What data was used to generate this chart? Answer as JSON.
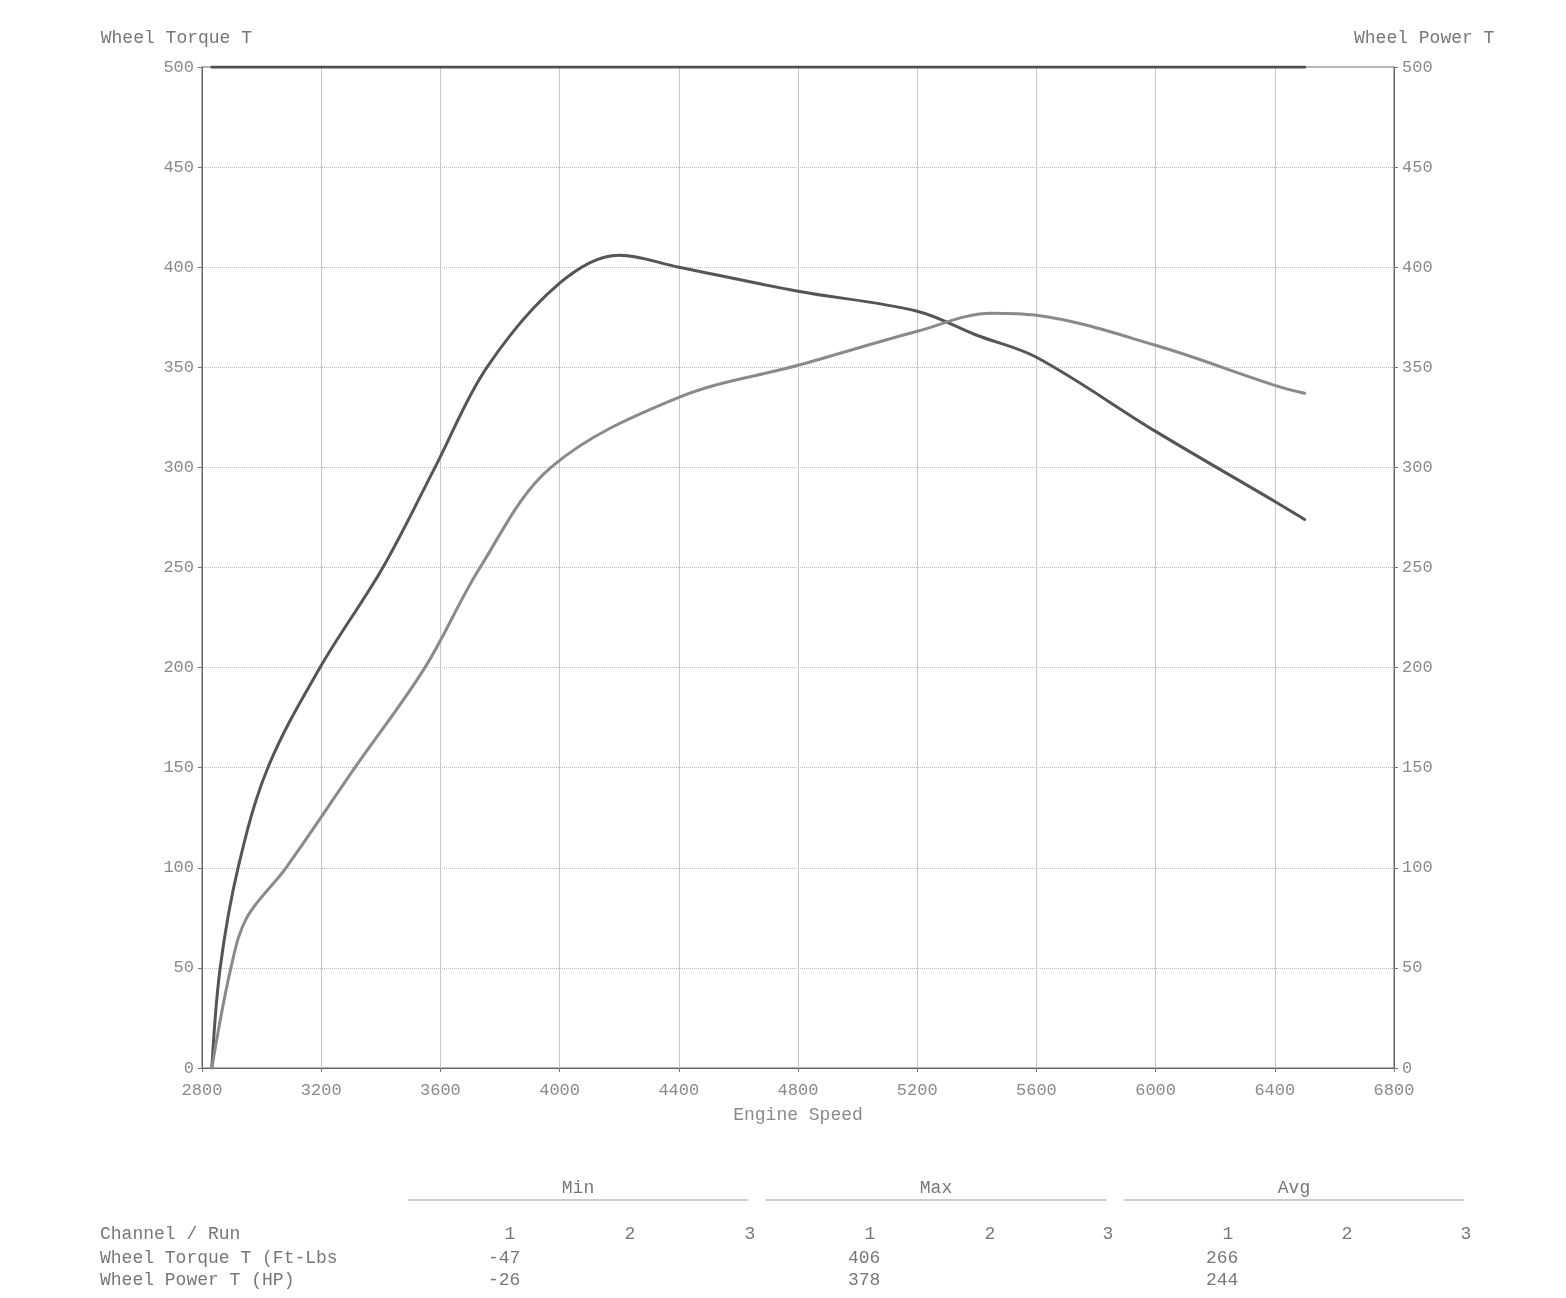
{
  "chart_data": {
    "type": "line",
    "xlabel": "Engine Speed",
    "ylabel": "Wheel Torque T",
    "y2label": "Wheel Power T",
    "xlim": [
      2800,
      6800
    ],
    "xticks": [
      2800,
      3200,
      3600,
      4000,
      4400,
      4800,
      5200,
      5600,
      6000,
      6400,
      6800
    ],
    "ylim": [
      0,
      500
    ],
    "yticks": [
      0,
      50,
      100,
      150,
      200,
      250,
      300,
      350,
      400,
      450,
      500
    ],
    "y2lim": [
      0,
      500
    ],
    "y2ticks": [
      0,
      50,
      100,
      150,
      200,
      250,
      300,
      350,
      400,
      450,
      500
    ],
    "grid": true,
    "marker": "none",
    "line_style": "solid",
    "series": [
      {
        "color": "#555555",
        "x": [
          2833,
          2861,
          2921,
          3021,
          3196,
          3407,
          3582,
          3756,
          4000,
          4200,
          4400,
          4800,
          5200,
          5400,
          5600,
          6000,
          6400,
          6500
        ],
        "values": [
          0,
          50,
          100,
          150,
          200,
          250,
          300,
          350,
          392,
          406,
          400,
          388,
          378,
          366,
          355,
          318,
          283,
          274
        ]
      },
      {
        "color": "#8a8a8a",
        "x": [
          2833,
          2897,
          2950,
          3082,
          3313,
          3548,
          3733,
          3971,
          4400,
          4800,
          5200,
          5450,
          5600,
          6000,
          6400,
          6500
        ],
        "values": [
          0,
          50,
          75,
          100,
          150,
          200,
          250,
          300,
          335,
          351,
          368,
          377,
          376,
          361,
          341,
          337
        ]
      },
      {
        "color": "#505050",
        "x": [
          2833,
          6500
        ],
        "values": [
          500,
          500
        ]
      }
    ],
    "annotations": [
      "Min",
      "Max",
      "Avg",
      "Channel / Run",
      "1",
      "2",
      "3",
      "1",
      "2",
      "3",
      "1",
      "2",
      "3",
      "Wheel Torque T (Ft-Lbs",
      "-47",
      "406",
      "266",
      "Wheel Power T (HP)",
      "-26",
      "378",
      "244"
    ]
  }
}
